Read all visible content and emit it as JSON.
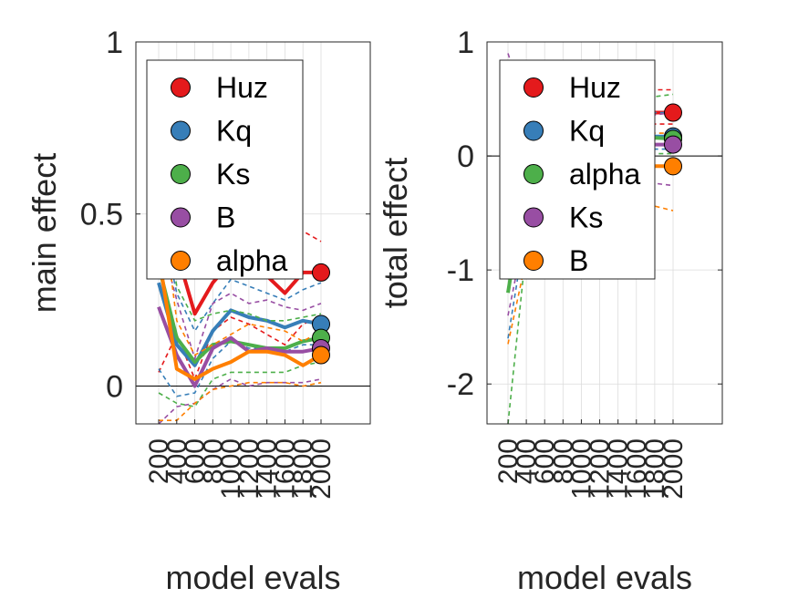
{
  "chart_data": [
    {
      "type": "line",
      "ylabel": "main effect",
      "xlabel": "model evals",
      "ylim": [
        -0.11,
        1.0
      ],
      "yticks": [
        "0",
        "0.5",
        "1"
      ],
      "x": [
        "200",
        "400",
        "600",
        "800",
        "1000",
        "1200",
        "1400",
        "1600",
        "1800",
        "2000"
      ],
      "grid": true,
      "legend_position": "top-left",
      "series": [
        {
          "name": "Huz",
          "color": "#e41a1c",
          "values": [
            0.4,
            0.39,
            0.21,
            0.3,
            0.36,
            0.34,
            0.32,
            0.27,
            0.33,
            0.33
          ],
          "lower": [
            0.04,
            0.15,
            0.02,
            0.16,
            0.2,
            0.18,
            0.15,
            0.12,
            0.18,
            0.2
          ],
          "upper": [
            0.66,
            0.63,
            0.4,
            0.44,
            0.5,
            0.47,
            0.46,
            0.42,
            0.45,
            0.42
          ]
        },
        {
          "name": "Kq",
          "color": "#377eb8",
          "values": [
            0.3,
            0.12,
            0.06,
            0.16,
            0.22,
            0.2,
            0.19,
            0.17,
            0.19,
            0.18
          ],
          "lower": [
            0.05,
            -0.03,
            -0.02,
            0.08,
            0.13,
            0.11,
            0.11,
            0.1,
            0.12,
            0.12
          ],
          "upper": [
            0.52,
            0.27,
            0.16,
            0.24,
            0.31,
            0.29,
            0.27,
            0.25,
            0.28,
            0.3
          ]
        },
        {
          "name": "Ks",
          "color": "#4daf4a",
          "values": [
            0.35,
            0.14,
            0.07,
            0.12,
            0.13,
            0.12,
            0.11,
            0.11,
            0.13,
            0.14
          ],
          "lower": [
            -0.02,
            -0.05,
            -0.06,
            0.02,
            0.04,
            0.04,
            0.04,
            0.04,
            0.06,
            0.07
          ],
          "upper": [
            0.61,
            0.29,
            0.19,
            0.21,
            0.22,
            0.21,
            0.19,
            0.19,
            0.2,
            0.21
          ]
        },
        {
          "name": "B",
          "color": "#984ea3",
          "values": [
            0.23,
            0.09,
            0.0,
            0.11,
            0.14,
            0.1,
            0.11,
            0.1,
            0.1,
            0.11
          ],
          "lower": [
            -0.11,
            -0.06,
            -0.05,
            -0.01,
            0.02,
            0.0,
            0.01,
            0.01,
            0.01,
            0.02
          ],
          "upper": [
            0.45,
            0.25,
            0.08,
            0.24,
            0.27,
            0.24,
            0.25,
            0.23,
            0.22,
            0.24
          ]
        },
        {
          "name": "alpha",
          "color": "#ff7f00",
          "values": [
            0.38,
            0.05,
            0.02,
            0.05,
            0.07,
            0.1,
            0.1,
            0.09,
            0.06,
            0.09
          ],
          "lower": [
            -0.1,
            -0.1,
            -0.05,
            -0.01,
            0.0,
            0.01,
            0.01,
            0.01,
            0.0,
            0.01
          ],
          "upper": [
            0.6,
            0.19,
            0.09,
            0.12,
            0.15,
            0.18,
            0.17,
            0.16,
            0.13,
            0.16
          ]
        }
      ]
    },
    {
      "type": "line",
      "ylabel": "total effect",
      "xlabel": "model evals",
      "ylim": [
        -2.35,
        1.0
      ],
      "yticks": [
        "-2",
        "-1",
        "0",
        "1"
      ],
      "x": [
        "200",
        "400",
        "600",
        "800",
        "1000",
        "1200",
        "1400",
        "1600",
        "1800",
        "2000"
      ],
      "grid": true,
      "legend_position": "top-left",
      "series": [
        {
          "name": "Huz",
          "color": "#e41a1c",
          "values": [
            0.05,
            0.1,
            0.2,
            0.28,
            0.32,
            0.34,
            0.36,
            0.36,
            0.38,
            0.38
          ],
          "lower": [
            -0.8,
            -0.2,
            0.0,
            0.1,
            0.18,
            0.22,
            0.24,
            0.26,
            0.28,
            0.28
          ],
          "upper": [
            0.7,
            0.4,
            0.42,
            0.46,
            0.5,
            0.52,
            0.54,
            0.55,
            0.58,
            0.58
          ]
        },
        {
          "name": "Kq",
          "color": "#377eb8",
          "values": [
            -0.8,
            -0.2,
            0.0,
            0.08,
            0.12,
            0.14,
            0.15,
            0.16,
            0.17,
            0.17
          ],
          "lower": [
            -1.6,
            -0.6,
            -0.2,
            -0.1,
            -0.05,
            0.0,
            0.02,
            0.04,
            0.06,
            0.06
          ],
          "upper": [
            0.4,
            0.3,
            0.3,
            0.32,
            0.34,
            0.35,
            0.36,
            0.37,
            0.38,
            0.38
          ]
        },
        {
          "name": "alpha",
          "color": "#4daf4a",
          "values": [
            -1.2,
            -0.2,
            0.05,
            0.1,
            0.12,
            0.14,
            0.15,
            0.15,
            0.16,
            0.15
          ],
          "lower": [
            -2.35,
            -0.8,
            -0.3,
            -0.15,
            -0.08,
            -0.04,
            -0.02,
            0.0,
            0.02,
            0.02
          ],
          "upper": [
            0.6,
            0.45,
            0.42,
            0.44,
            0.46,
            0.48,
            0.5,
            0.52,
            0.52,
            0.54
          ]
        },
        {
          "name": "Ks",
          "color": "#984ea3",
          "values": [
            -0.6,
            -0.1,
            0.0,
            0.05,
            0.07,
            0.08,
            0.09,
            0.1,
            0.1,
            0.1
          ],
          "lower": [
            -1.4,
            -0.6,
            -0.3,
            -0.25,
            -0.22,
            -0.22,
            -0.22,
            -0.22,
            -0.24,
            -0.26
          ],
          "upper": [
            0.9,
            0.4,
            0.3,
            0.3,
            0.3,
            0.32,
            0.34,
            0.34,
            0.36,
            0.38
          ]
        },
        {
          "name": "B",
          "color": "#ff7f00",
          "values": [
            -1.0,
            -0.35,
            -0.2,
            -0.15,
            -0.12,
            -0.1,
            -0.1,
            -0.09,
            -0.09,
            -0.09
          ],
          "lower": [
            -1.65,
            -0.9,
            -0.6,
            -0.45,
            -0.38,
            -0.36,
            -0.38,
            -0.4,
            -0.44,
            -0.48
          ],
          "upper": [
            -0.2,
            0.1,
            0.1,
            0.12,
            0.15,
            0.16,
            0.17,
            0.18,
            0.2,
            0.2
          ]
        }
      ]
    }
  ]
}
